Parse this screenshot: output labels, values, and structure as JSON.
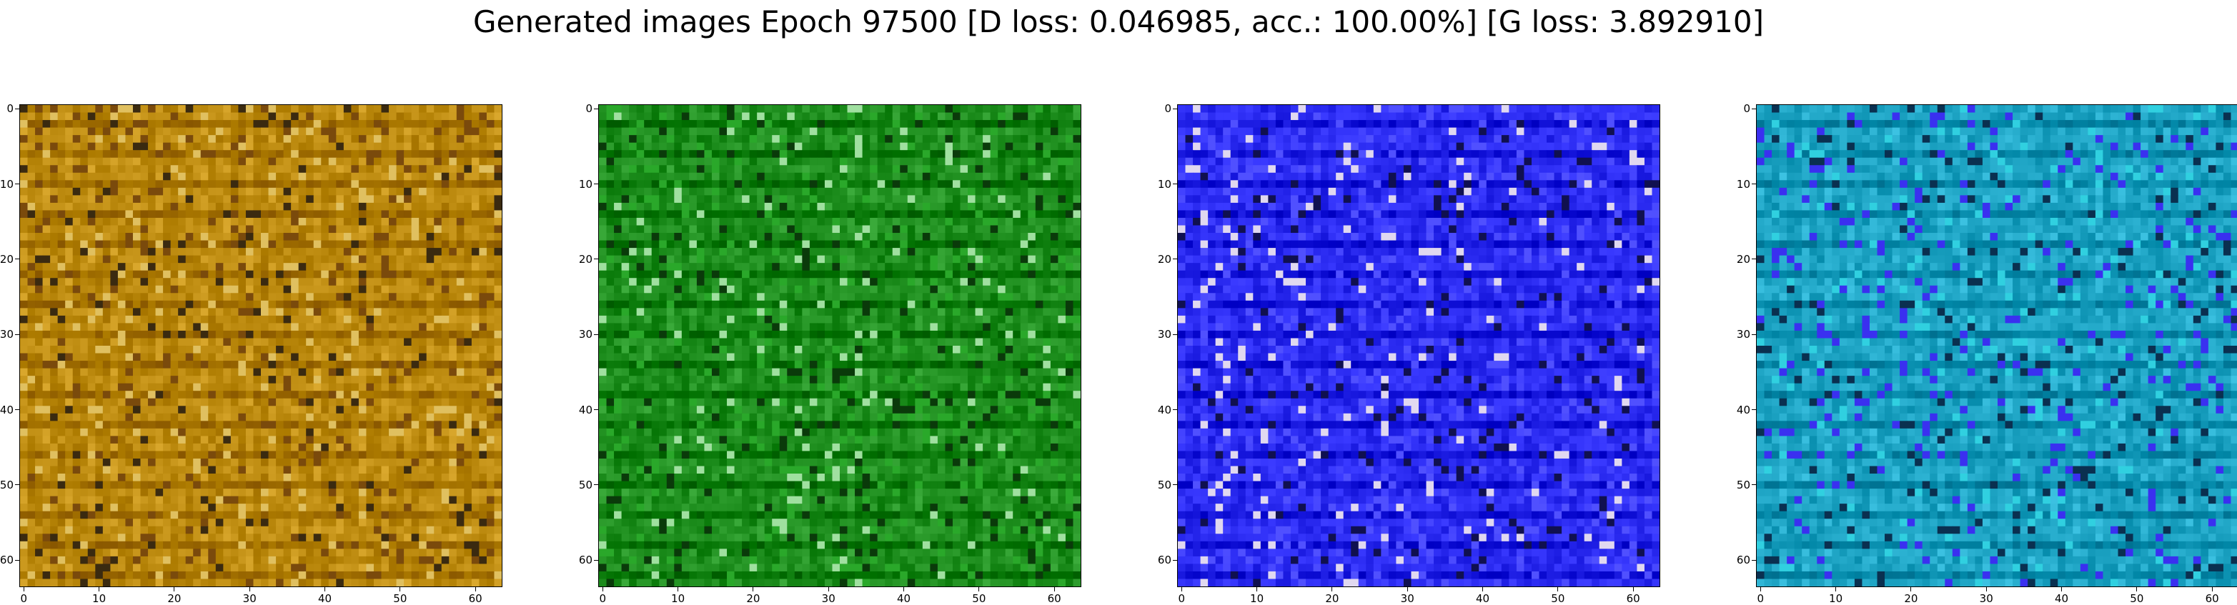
{
  "figure": {
    "suptitle": "Generated images Epoch 97500 [D loss: 0.046985, acc.: 100.00%] [G loss: 3.892910]"
  },
  "chart_data": [
    {
      "type": "heatmap",
      "title": "",
      "xlabel": "",
      "ylabel": "",
      "xlim": [
        -0.5,
        63.5
      ],
      "ylim": [
        63.5,
        -0.5
      ],
      "xticks": [
        0,
        10,
        20,
        30,
        40,
        50,
        60
      ],
      "yticks": [
        0,
        10,
        20,
        30,
        40,
        50,
        60
      ],
      "grid_size": [
        64,
        64
      ],
      "dominant_color": "#b8860b",
      "description_palette": [
        "#c9941a",
        "#a8720e",
        "#7a4a0c",
        "#e0c060",
        "#3a2a10",
        "#f0e8c0"
      ]
    },
    {
      "type": "heatmap",
      "title": "",
      "xlabel": "",
      "ylabel": "",
      "xlim": [
        -0.5,
        63.5
      ],
      "ylim": [
        63.5,
        -0.5
      ],
      "xticks": [
        0,
        10,
        20,
        30,
        40,
        50,
        60
      ],
      "yticks": [
        0,
        10,
        20,
        30,
        40,
        50,
        60
      ],
      "grid_size": [
        64,
        64
      ],
      "dominant_color": "#1a8a1a",
      "description_palette": [
        "#1f8f1f",
        "#0f6a0f",
        "#2aa82a",
        "#0a3a0a",
        "#a0e0a0",
        "#e83030"
      ]
    },
    {
      "type": "heatmap",
      "title": "",
      "xlabel": "",
      "ylabel": "",
      "xlim": [
        -0.5,
        63.5
      ],
      "ylim": [
        63.5,
        -0.5
      ],
      "xticks": [
        0,
        10,
        20,
        30,
        40,
        50,
        60
      ],
      "yticks": [
        0,
        10,
        20,
        30,
        40,
        50,
        60
      ],
      "grid_size": [
        64,
        64
      ],
      "dominant_color": "#2a2af0",
      "description_palette": [
        "#3030f0",
        "#1c1cd8",
        "#5050ff",
        "#101050",
        "#e0d8f0",
        "#e03020"
      ]
    },
    {
      "type": "heatmap",
      "title": "",
      "xlabel": "",
      "ylabel": "",
      "xlim": [
        -0.5,
        63.5
      ],
      "ylim": [
        63.5,
        -0.5
      ],
      "xticks": [
        0,
        10,
        20,
        30,
        40,
        50,
        60
      ],
      "yticks": [
        0,
        10,
        20,
        30,
        40,
        50,
        60
      ],
      "grid_size": [
        64,
        64
      ],
      "dominant_color": "#1aa0c0",
      "description_palette": [
        "#1fb0c8",
        "#1a80b0",
        "#3a30f0",
        "#0a3050",
        "#30d0e0",
        "#f0c0e0"
      ]
    }
  ]
}
